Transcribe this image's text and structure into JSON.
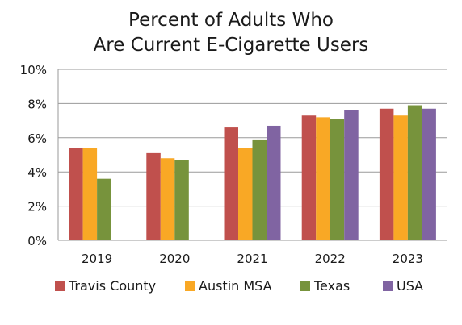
{
  "chart_data": {
    "type": "bar",
    "title_line1": "Percent of Adults Who",
    "title_line2": "Are Current E-Cigarette Users",
    "categories": [
      "2019",
      "2020",
      "2021",
      "2022",
      "2023"
    ],
    "ylim": [
      0,
      10
    ],
    "yticks": [
      "0%",
      "2%",
      "4%",
      "6%",
      "8%",
      "10%"
    ],
    "grid": true,
    "legend_position": "bottom",
    "series": [
      {
        "name": "Travis County",
        "color": "#c0504d",
        "values": [
          5.4,
          5.1,
          6.6,
          7.3,
          7.7
        ]
      },
      {
        "name": "Austin MSA",
        "color": "#f9a825",
        "values": [
          5.4,
          4.8,
          5.4,
          7.2,
          7.3
        ]
      },
      {
        "name": "Texas",
        "color": "#77933c",
        "values": [
          3.6,
          4.7,
          5.9,
          7.1,
          7.9
        ]
      },
      {
        "name": "USA",
        "color": "#8064a2",
        "values": [
          null,
          null,
          6.7,
          7.6,
          7.7
        ]
      }
    ]
  }
}
